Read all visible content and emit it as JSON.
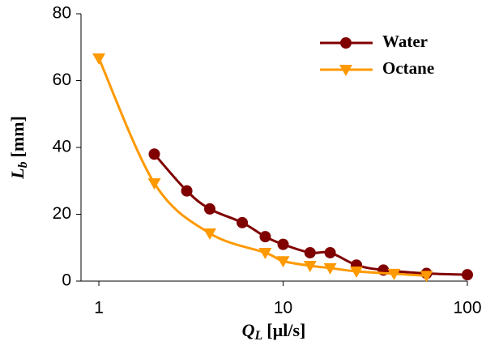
{
  "chart_data": {
    "type": "line",
    "x_label": {
      "main": "Q",
      "sub": "L",
      "unit": "[µl/s]"
    },
    "y_label": {
      "main": "L",
      "sub": "b",
      "unit": "[mm]"
    },
    "xscale": "log",
    "xlim": [
      0.8,
      100
    ],
    "xticks": [
      1,
      10,
      100
    ],
    "ylim": [
      0,
      80
    ],
    "yticks": [
      0,
      20,
      40,
      60,
      80
    ],
    "legend": "upper right",
    "series": [
      {
        "name": "Water",
        "color": "#800000",
        "marker": "circle",
        "x": [
          2,
          3,
          4,
          6,
          8,
          10,
          14,
          18,
          25,
          35,
          60,
          100
        ],
        "values": [
          38,
          27,
          21.6,
          17.5,
          13.3,
          11,
          8.5,
          8.5,
          4.8,
          3.3,
          2.3,
          1.9
        ]
      },
      {
        "name": "Octane",
        "color": "#ff9900",
        "marker": "triangle",
        "x": [
          1,
          2,
          4,
          8,
          10,
          14,
          18,
          25,
          40,
          60
        ],
        "values": [
          66.7,
          29.3,
          14.3,
          8.5,
          6,
          4.6,
          3.9,
          2.9,
          2.2,
          1.6
        ]
      }
    ]
  }
}
